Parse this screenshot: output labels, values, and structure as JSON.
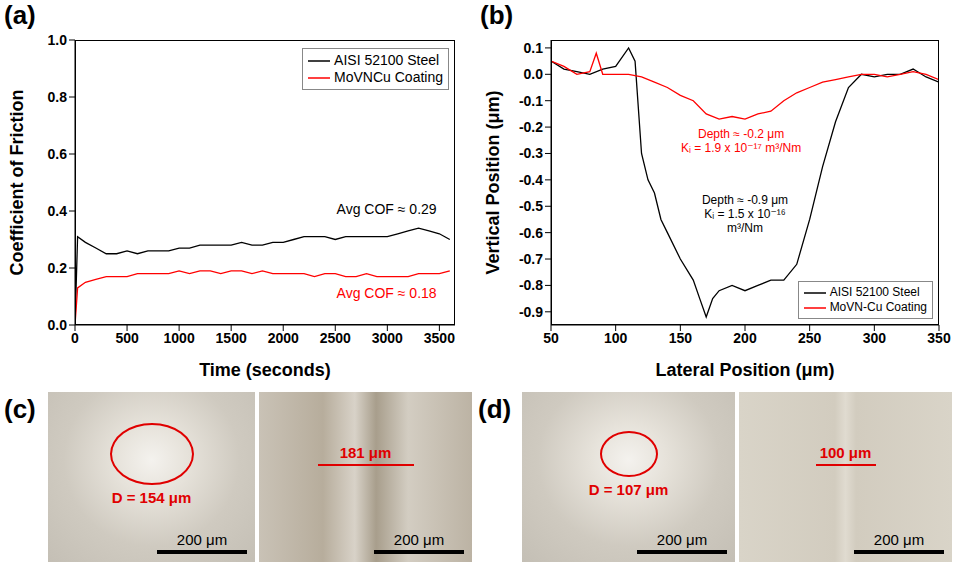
{
  "chart_data": [
    {
      "type": "line",
      "label": "(a)",
      "x_label": "Time (seconds)",
      "y_label": "Coefficient of Friction",
      "xlim": [
        0,
        3650
      ],
      "xticks": [
        0,
        500,
        1000,
        1500,
        2000,
        2500,
        3000,
        3500
      ],
      "ylim": [
        0,
        1
      ],
      "yticks": [
        {
          "value": 0,
          "label": "0.0"
        },
        0.2,
        0.4,
        0.6,
        0.8,
        {
          "value": 1,
          "label": "1.0"
        }
      ],
      "grid": false,
      "legend": "upper right",
      "series": [
        {
          "name": "AISI 52100 Steel",
          "color": "#000000",
          "annotation": [
            "Avg COF ≈ 0.29"
          ],
          "x": [
            0,
            25,
            100,
            200,
            300,
            400,
            500,
            600,
            700,
            800,
            900,
            1000,
            1100,
            1200,
            1300,
            1400,
            1500,
            1600,
            1700,
            1800,
            1900,
            2000,
            2100,
            2200,
            2300,
            2400,
            2500,
            2600,
            2700,
            2800,
            2900,
            3000,
            3100,
            3200,
            3300,
            3400,
            3500,
            3600
          ],
          "values": [
            0,
            0.31,
            0.29,
            0.27,
            0.25,
            0.25,
            0.26,
            0.25,
            0.26,
            0.26,
            0.26,
            0.27,
            0.27,
            0.28,
            0.28,
            0.28,
            0.28,
            0.29,
            0.28,
            0.28,
            0.29,
            0.29,
            0.3,
            0.31,
            0.31,
            0.31,
            0.3,
            0.31,
            0.31,
            0.31,
            0.31,
            0.31,
            0.32,
            0.33,
            0.34,
            0.33,
            0.32,
            0.3
          ]
        },
        {
          "name": "MoVNCu Coating",
          "color": "#ff0000",
          "annotation": [
            "Avg COF ≈ 0.18"
          ],
          "x": [
            0,
            25,
            100,
            200,
            300,
            400,
            500,
            600,
            700,
            800,
            900,
            1000,
            1100,
            1200,
            1300,
            1400,
            1500,
            1600,
            1700,
            1800,
            1900,
            2000,
            2100,
            2200,
            2300,
            2400,
            2500,
            2600,
            2700,
            2800,
            2900,
            3000,
            3100,
            3200,
            3300,
            3400,
            3500,
            3600
          ],
          "values": [
            0,
            0.13,
            0.15,
            0.16,
            0.17,
            0.17,
            0.17,
            0.18,
            0.18,
            0.18,
            0.18,
            0.19,
            0.18,
            0.19,
            0.19,
            0.18,
            0.19,
            0.19,
            0.18,
            0.19,
            0.18,
            0.18,
            0.18,
            0.18,
            0.17,
            0.18,
            0.18,
            0.17,
            0.17,
            0.18,
            0.17,
            0.17,
            0.17,
            0.17,
            0.18,
            0.18,
            0.18,
            0.19
          ]
        }
      ]
    },
    {
      "type": "line",
      "label": "(b)",
      "x_label": "Lateral Position (μm)",
      "y_label": "Vertical Position (μm)",
      "xlim": [
        50,
        350
      ],
      "xticks": [
        50,
        100,
        150,
        200,
        250,
        300,
        350
      ],
      "ylim": [
        -0.95,
        0.13
      ],
      "yticks": [
        0.1,
        {
          "value": 0,
          "label": "0.0"
        },
        -0.1,
        -0.2,
        -0.3,
        -0.4,
        -0.5,
        -0.6,
        -0.7,
        -0.8,
        -0.9
      ],
      "grid": false,
      "legend": "lower right",
      "series": [
        {
          "name": "AISI 52100 Steel",
          "color": "#000000",
          "annotation": [
            "Depth ≈ -0.9 μm",
            "Kᵢ = 1.5 x 10⁻¹⁶",
            "m³/Nm"
          ],
          "x": [
            50,
            60,
            70,
            80,
            90,
            100,
            110,
            115,
            120,
            125,
            130,
            135,
            140,
            150,
            160,
            165,
            170,
            175,
            180,
            190,
            200,
            210,
            220,
            230,
            240,
            250,
            260,
            270,
            280,
            290,
            300,
            310,
            320,
            330,
            340,
            350
          ],
          "values": [
            0.05,
            0.02,
            0.01,
            0,
            0.02,
            0.03,
            0.1,
            0.05,
            -0.3,
            -0.4,
            -0.45,
            -0.55,
            -0.6,
            -0.7,
            -0.78,
            -0.85,
            -0.92,
            -0.85,
            -0.82,
            -0.8,
            -0.82,
            -0.8,
            -0.78,
            -0.78,
            -0.72,
            -0.55,
            -0.35,
            -0.18,
            -0.05,
            0,
            -0.01,
            0,
            0,
            0.02,
            -0.01,
            -0.03
          ]
        },
        {
          "name": "MoVN-Cu Coating",
          "color": "#ff0000",
          "annotation": [
            "Depth ≈ -0.2 μm",
            "Kᵢ = 1.9 x 10⁻¹⁷ m³/Nm"
          ],
          "x": [
            50,
            60,
            70,
            80,
            85,
            90,
            100,
            110,
            120,
            130,
            140,
            150,
            160,
            170,
            180,
            190,
            200,
            210,
            220,
            230,
            240,
            250,
            260,
            270,
            280,
            290,
            300,
            310,
            320,
            330,
            340,
            350
          ],
          "values": [
            0.05,
            0.03,
            0,
            0.01,
            0.08,
            0,
            0,
            0,
            -0.01,
            -0.03,
            -0.05,
            -0.08,
            -0.1,
            -0.15,
            -0.17,
            -0.16,
            -0.17,
            -0.15,
            -0.14,
            -0.1,
            -0.07,
            -0.05,
            -0.03,
            -0.02,
            -0.01,
            0,
            0,
            -0.01,
            0,
            0.01,
            0,
            -0.02
          ]
        }
      ]
    }
  ],
  "images": [
    {
      "label": "(c)",
      "photos": [
        {
          "annotation": "D = 154 μm",
          "scale_bar": "200 μm"
        },
        {
          "annotation": "181 μm",
          "scale_bar": "200 μm"
        }
      ]
    },
    {
      "label": "(d)",
      "photos": [
        {
          "annotation": "D = 107 μm",
          "scale_bar": "200 μm"
        },
        {
          "annotation": "100 μm",
          "scale_bar": "200 μm"
        }
      ]
    }
  ]
}
